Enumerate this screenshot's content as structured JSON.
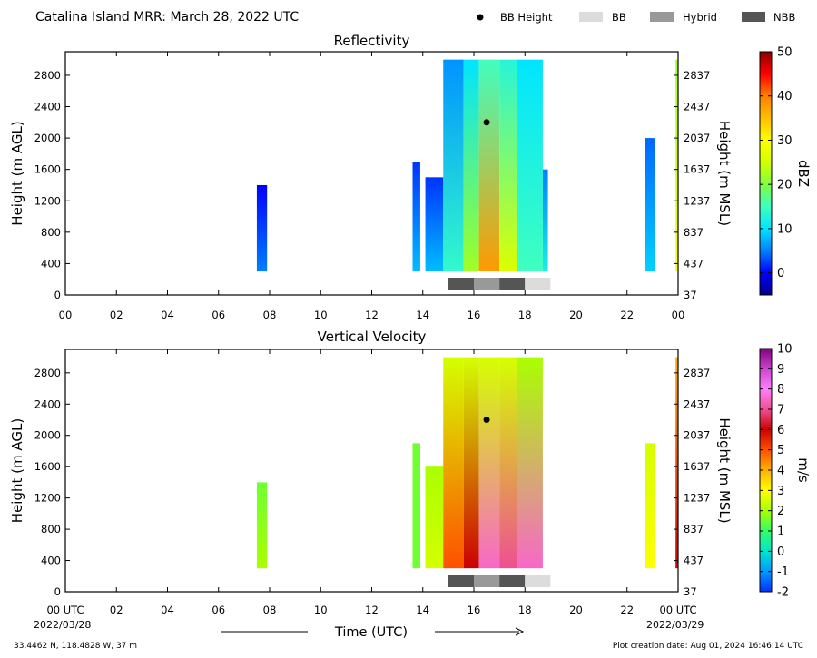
{
  "figure": {
    "title": "Catalina Island MRR:  March 28, 2022 UTC",
    "legend": {
      "bb_height": "BB Height",
      "bb": "BB",
      "hybrid": "Hybrid",
      "nbb": "NBB",
      "colors": {
        "bb_height": "#000000",
        "bb": "#dcdcdc",
        "hybrid": "#999999",
        "nbb": "#555555"
      }
    },
    "footer": {
      "location": "33.4462 N, 118.4828 W, 37 m",
      "created": "Plot creation date: Aug 01, 2024 16:46:14 UTC",
      "x_axis_title": "Time (UTC)",
      "start_date": "2022/03/28",
      "end_date": "2022/03/29",
      "start_tick": "00 UTC",
      "end_tick": "00 UTC"
    }
  },
  "chart_data": [
    {
      "type": "heatmap",
      "title": "Reflectivity",
      "xlabel": "",
      "ylabel": "Height (m AGL)",
      "ylabel_right": "Height (m MSL)",
      "colorbar_label": "dBZ",
      "xlim": [
        0,
        24
      ],
      "ylim": [
        0,
        3100
      ],
      "x_ticks": [
        "00",
        "02",
        "04",
        "06",
        "08",
        "10",
        "12",
        "14",
        "16",
        "18",
        "20",
        "22",
        "00"
      ],
      "y_ticks": [
        0,
        400,
        800,
        1200,
        1600,
        2000,
        2400,
        2800
      ],
      "y_ticks_right": [
        37,
        437,
        837,
        1237,
        1637,
        2037,
        2437,
        2837
      ],
      "colorbar": {
        "min": -5,
        "max": 50,
        "ticks": [
          0,
          10,
          20,
          30,
          40,
          50
        ],
        "stops": [
          [
            -5,
            "#00008b"
          ],
          [
            0,
            "#0000ff"
          ],
          [
            5,
            "#0080ff"
          ],
          [
            10,
            "#00e5ff"
          ],
          [
            15,
            "#40ffbf"
          ],
          [
            20,
            "#7fff3f"
          ],
          [
            25,
            "#d4ff00"
          ],
          [
            30,
            "#ffff00"
          ],
          [
            35,
            "#ffbf00"
          ],
          [
            40,
            "#ff7f00"
          ],
          [
            45,
            "#ff0000"
          ],
          [
            50,
            "#8b0000"
          ]
        ]
      },
      "echo_periods": [
        {
          "start": 7.5,
          "end": 7.9,
          "top": 1400,
          "value_bottom": 5,
          "value_top": 0
        },
        {
          "start": 13.6,
          "end": 13.9,
          "top": 1700,
          "value_bottom": 8,
          "value_top": 2
        },
        {
          "start": 14.1,
          "end": 14.8,
          "top": 1500,
          "value_bottom": 8,
          "value_top": 2
        },
        {
          "start": 14.8,
          "end": 15.6,
          "top": 3000,
          "value_bottom": 14,
          "value_top": 6
        },
        {
          "start": 15.6,
          "end": 16.2,
          "top": 3000,
          "value_bottom": 22,
          "value_top": 10
        },
        {
          "start": 16.2,
          "end": 17.0,
          "top": 3000,
          "value_bottom": 38,
          "value_top": 15
        },
        {
          "start": 17.0,
          "end": 17.7,
          "top": 3000,
          "value_bottom": 26,
          "value_top": 13
        },
        {
          "start": 17.7,
          "end": 18.7,
          "top": 3000,
          "value_bottom": 15,
          "value_top": 10
        },
        {
          "start": 18.7,
          "end": 18.9,
          "top": 1600,
          "value_bottom": 12,
          "value_top": 5
        },
        {
          "start": 22.7,
          "end": 23.1,
          "top": 2000,
          "value_bottom": 9,
          "value_top": 4
        },
        {
          "start": 23.9,
          "end": 24.0,
          "top": 3000,
          "value_bottom": 30,
          "value_top": 22
        }
      ],
      "bb_height_points": [
        {
          "x": 16.5,
          "y": 2200
        }
      ],
      "bb_type_bar": [
        {
          "start": 15.0,
          "end": 16.0,
          "type": "nbb"
        },
        {
          "start": 16.0,
          "end": 17.0,
          "type": "hybrid"
        },
        {
          "start": 17.0,
          "end": 18.0,
          "type": "nbb"
        },
        {
          "start": 18.0,
          "end": 19.0,
          "type": "bb"
        }
      ]
    },
    {
      "type": "heatmap",
      "title": "Vertical Velocity",
      "xlabel": "Time (UTC)",
      "ylabel": "Height (m AGL)",
      "ylabel_right": "Height (m MSL)",
      "colorbar_label": "m/s",
      "xlim": [
        0,
        24
      ],
      "ylim": [
        0,
        3100
      ],
      "x_ticks": [
        "00 UTC",
        "02",
        "04",
        "06",
        "08",
        "10",
        "12",
        "14",
        "16",
        "18",
        "20",
        "22",
        "00 UTC"
      ],
      "y_ticks": [
        0,
        400,
        800,
        1200,
        1600,
        2000,
        2400,
        2800
      ],
      "y_ticks_right": [
        37,
        437,
        837,
        1237,
        1637,
        2037,
        2437,
        2837
      ],
      "colorbar": {
        "min": -2,
        "max": 10,
        "ticks": [
          -2,
          -1,
          0,
          1,
          2,
          3,
          4,
          5,
          6,
          7,
          8,
          9,
          10
        ],
        "stops": [
          [
            -2,
            "#0033ff"
          ],
          [
            -1,
            "#0099ff"
          ],
          [
            0,
            "#00e5cc"
          ],
          [
            1,
            "#33ff66"
          ],
          [
            2,
            "#aaff00"
          ],
          [
            3,
            "#ffff00"
          ],
          [
            4,
            "#ffb000"
          ],
          [
            5,
            "#ff5000"
          ],
          [
            6,
            "#cc0000"
          ],
          [
            7,
            "#ee5090"
          ],
          [
            8,
            "#ff80ff"
          ],
          [
            9,
            "#cc44cc"
          ],
          [
            10,
            "#800080"
          ]
        ]
      },
      "echo_periods": [
        {
          "start": 7.5,
          "end": 7.9,
          "top": 1400,
          "value_bottom": 2,
          "value_top": 1.5
        },
        {
          "start": 13.6,
          "end": 13.9,
          "top": 1900,
          "value_bottom": 1.5,
          "value_top": 1.5
        },
        {
          "start": 14.1,
          "end": 14.8,
          "top": 1600,
          "value_bottom": 2.5,
          "value_top": 2
        },
        {
          "start": 14.8,
          "end": 15.6,
          "top": 3000,
          "value_bottom": 5,
          "value_top": 2.5
        },
        {
          "start": 15.6,
          "end": 16.2,
          "top": 3000,
          "value_bottom": 6,
          "value_top": 2.5
        },
        {
          "start": 16.2,
          "end": 17.0,
          "top": 3000,
          "value_bottom": 7.5,
          "value_top": 2.5
        },
        {
          "start": 17.0,
          "end": 17.7,
          "top": 3000,
          "value_bottom": 7,
          "value_top": 2.5
        },
        {
          "start": 17.7,
          "end": 18.7,
          "top": 3000,
          "value_bottom": 7.5,
          "value_top": 2
        },
        {
          "start": 22.7,
          "end": 23.1,
          "top": 1900,
          "value_bottom": 3,
          "value_top": 2.5
        },
        {
          "start": 23.9,
          "end": 24.0,
          "top": 3000,
          "value_bottom": 6,
          "value_top": 4
        }
      ],
      "bb_height_points": [
        {
          "x": 16.5,
          "y": 2200
        }
      ],
      "bb_type_bar": [
        {
          "start": 15.0,
          "end": 16.0,
          "type": "nbb"
        },
        {
          "start": 16.0,
          "end": 17.0,
          "type": "hybrid"
        },
        {
          "start": 17.0,
          "end": 18.0,
          "type": "nbb"
        },
        {
          "start": 18.0,
          "end": 19.0,
          "type": "bb"
        }
      ]
    }
  ]
}
